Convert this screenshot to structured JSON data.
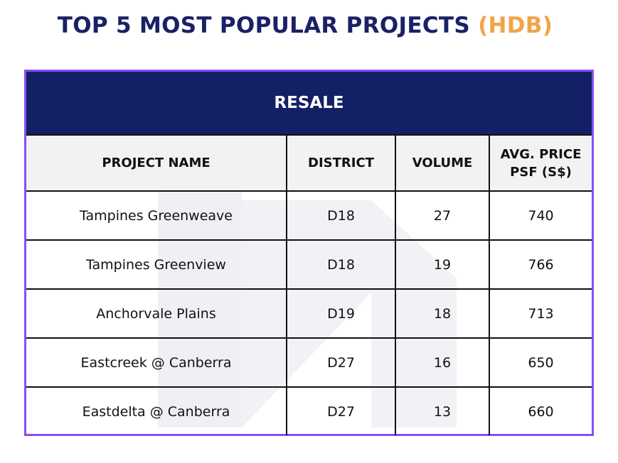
{
  "title": {
    "main": "TOP 5 MOST POPULAR PROJECTS",
    "accent": "(HDB)"
  },
  "colors": {
    "title": "#1a2166",
    "accent": "#f2a34a",
    "section_header_bg": "#142065",
    "table_border": "#8a4df0",
    "column_header_bg": "#f2f2f2"
  },
  "table": {
    "section_label": "RESALE",
    "columns": [
      "PROJECT NAME",
      "DISTRICT",
      "VOLUME",
      "AVG. PRICE PSF (S$)"
    ],
    "rows": [
      {
        "project": "Tampines Greenweave",
        "district": "D18",
        "volume": "27",
        "psf": "740"
      },
      {
        "project": "Tampines Greenview",
        "district": "D18",
        "volume": "19",
        "psf": "766"
      },
      {
        "project": "Anchorvale Plains",
        "district": "D19",
        "volume": "18",
        "psf": "713"
      },
      {
        "project": "Eastcreek @ Canberra",
        "district": "D27",
        "volume": "16",
        "psf": "650"
      },
      {
        "project": "Eastdelta @ Canberra",
        "district": "D27",
        "volume": "13",
        "psf": "660"
      }
    ]
  }
}
